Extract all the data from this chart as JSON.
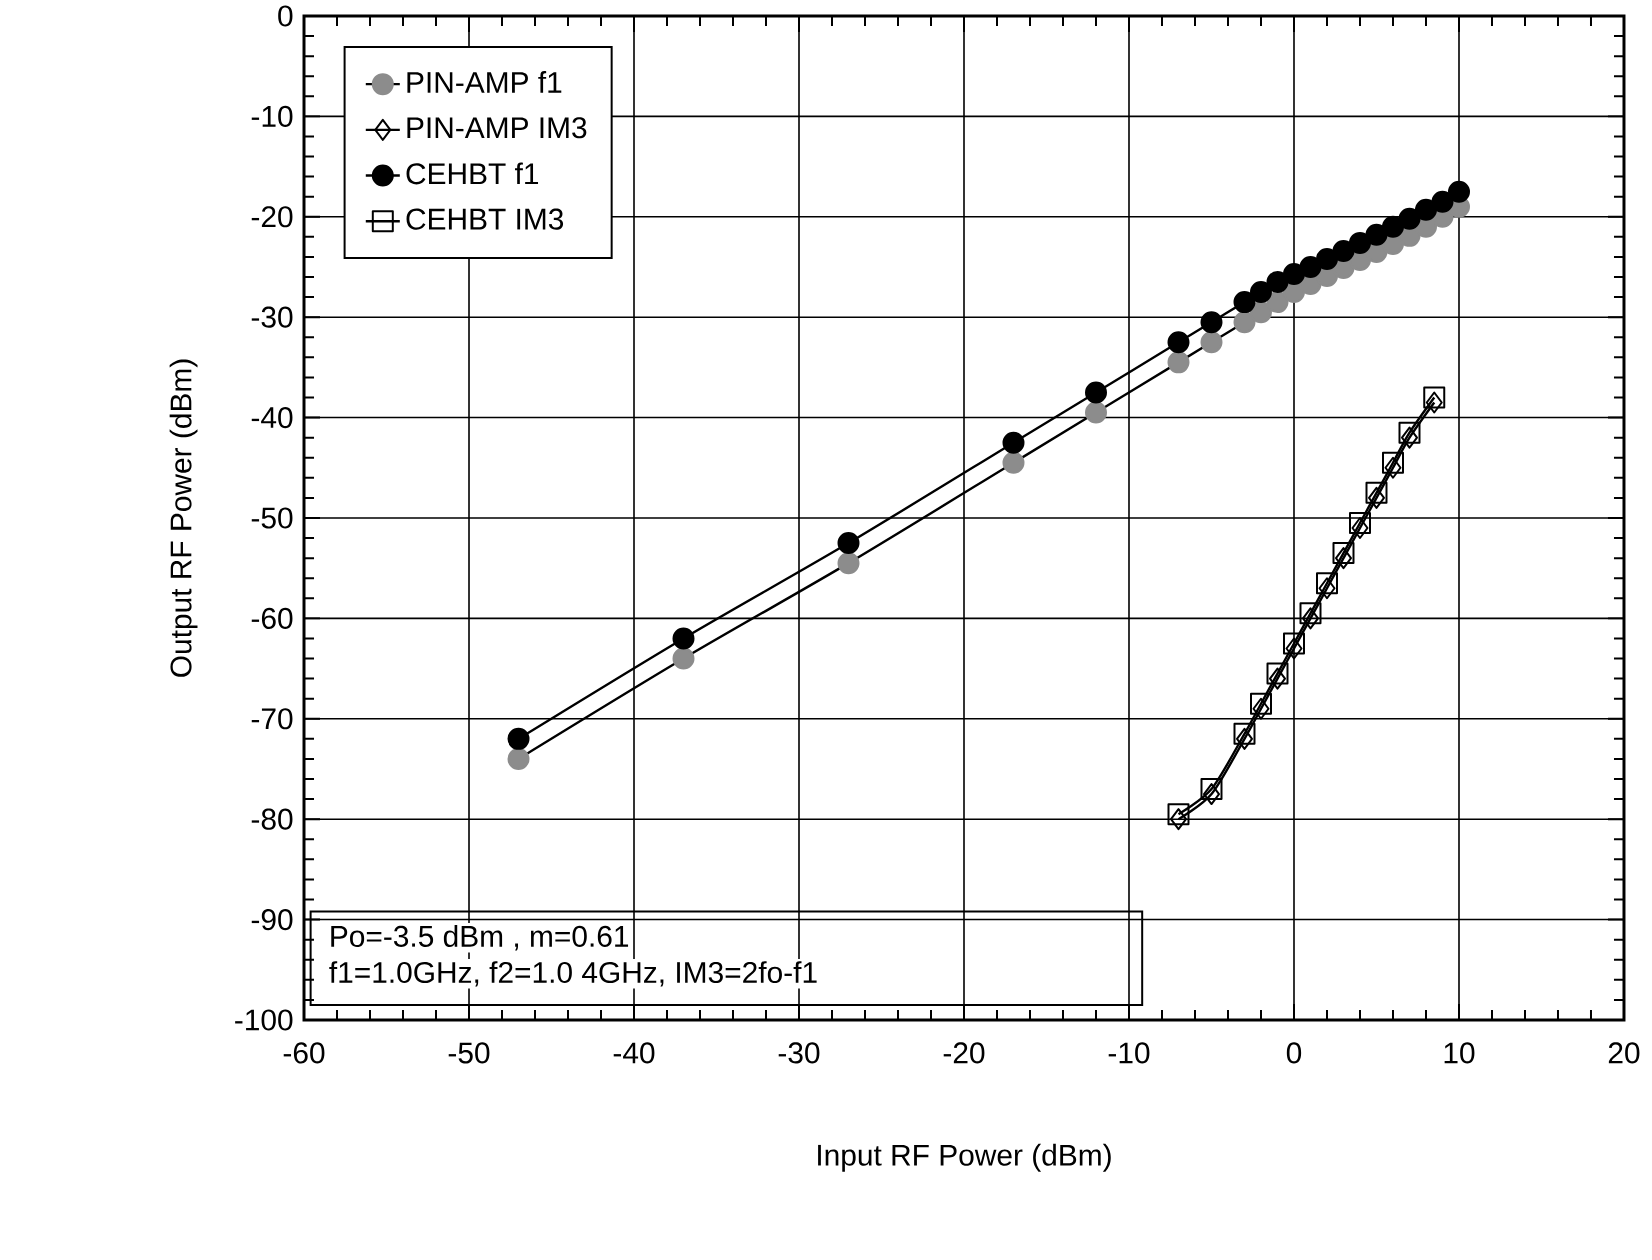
{
  "chart_data": {
    "type": "line",
    "xlabel": "Input RF Power (dBm)",
    "ylabel": "Output  RF Power (dBm)",
    "xlim": [
      -60,
      20
    ],
    "ylim": [
      -100,
      0
    ],
    "xticks": [
      -60,
      -50,
      -40,
      -30,
      -20,
      -10,
      0,
      10,
      20
    ],
    "yticks": [
      -100,
      -90,
      -80,
      -70,
      -60,
      -50,
      -40,
      -30,
      -20,
      -10,
      0
    ],
    "grid": true,
    "legend": "top left",
    "line_style": "solid",
    "annotations": [
      "Po=-3.5 dBm  , m=0.61",
      "f1=1.0GHz, f2=1.0 4GHz, IM3=2fo-f1"
    ],
    "series": [
      {
        "name": "PIN-AMP f1",
        "color": "#8c8c8c",
        "marker": "circle",
        "x": [
          -47,
          -37,
          -27,
          -17,
          -12,
          -7,
          -5,
          -3,
          -2,
          -1,
          0,
          1,
          2,
          3,
          4,
          5,
          6,
          7,
          8,
          9,
          10
        ],
        "values": [
          -74,
          -64,
          -54.5,
          -44.5,
          -39.5,
          -34.5,
          -32.5,
          -30.5,
          -29.5,
          -28.5,
          -27.5,
          -26.7,
          -25.9,
          -25.1,
          -24.3,
          -23.5,
          -22.7,
          -21.9,
          -21,
          -20,
          -19
        ]
      },
      {
        "name": "PIN-AMP IM3",
        "color": "#000000",
        "marker": "diamond",
        "x": [
          -7,
          -5,
          -3,
          -2,
          -1,
          0,
          1,
          2,
          3,
          4,
          5,
          6,
          7,
          8.5
        ],
        "values": [
          -80,
          -77.5,
          -72,
          -69,
          -66,
          -63,
          -60,
          -57,
          -54,
          -51,
          -48,
          -45,
          -42,
          -38.5
        ]
      },
      {
        "name": "CEHBT f1",
        "color": "#000000",
        "marker": "circle",
        "x": [
          -47,
          -37,
          -27,
          -17,
          -12,
          -7,
          -5,
          -3,
          -2,
          -1,
          0,
          1,
          2,
          3,
          4,
          5,
          6,
          7,
          8,
          9,
          10
        ],
        "values": [
          -72,
          -62,
          -52.5,
          -42.5,
          -37.5,
          -32.5,
          -30.5,
          -28.5,
          -27.5,
          -26.5,
          -25.7,
          -25,
          -24.2,
          -23.4,
          -22.6,
          -21.8,
          -21,
          -20.2,
          -19.3,
          -18.5,
          -17.5
        ]
      },
      {
        "name": "CEHBT IM3",
        "color": "#000000",
        "marker": "square",
        "x": [
          -7,
          -5,
          -3,
          -2,
          -1,
          0,
          1,
          2,
          3,
          4,
          5,
          6,
          7,
          8.5
        ],
        "values": [
          -79.5,
          -77,
          -71.5,
          -68.5,
          -65.5,
          -62.5,
          -59.5,
          -56.5,
          -53.5,
          -50.5,
          -47.5,
          -44.5,
          -41.5,
          -38
        ]
      }
    ]
  }
}
